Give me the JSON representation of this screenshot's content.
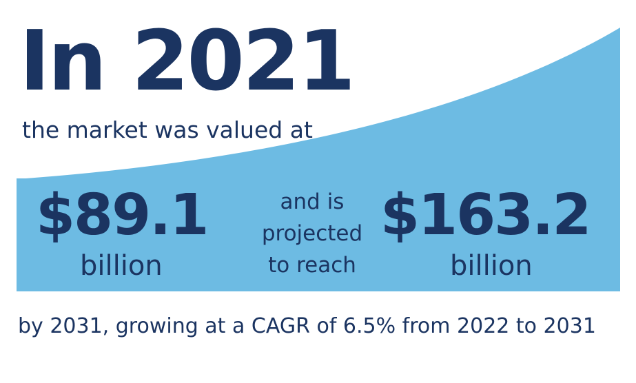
{
  "headline": "In 2021",
  "subheading": "the market was valued at",
  "value_2021": {
    "amount": "$89.1",
    "unit": "billion"
  },
  "connector": {
    "line1": "and is",
    "line2": "projected",
    "line3": "to reach"
  },
  "value_2031": {
    "amount": "$163.2",
    "unit": "billion"
  },
  "footer": "by 2031, growing at a CAGR of 6.5% from 2022 to 2031",
  "colors": {
    "text": "#1b3461",
    "accent_blue": "#6dbbe3",
    "dash_dark": "#1f7bb8",
    "dash_light": "#cfe8f7"
  }
}
